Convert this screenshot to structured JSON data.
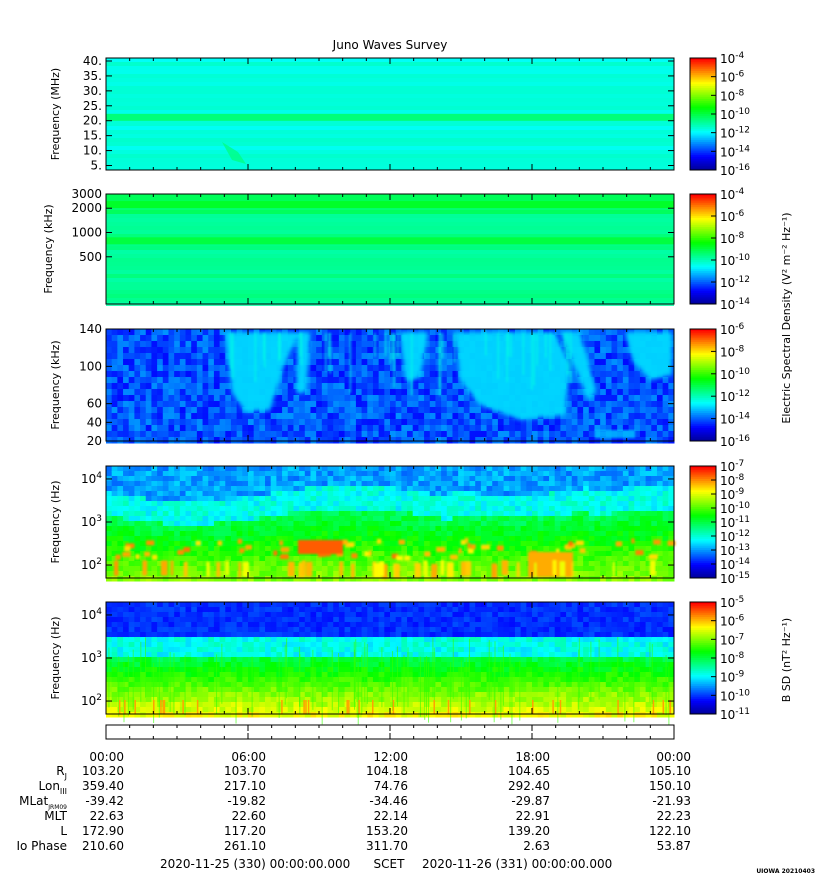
{
  "title": "Juno Waves Survey",
  "colors": {
    "colormap": [
      "#0000a0",
      "#0000ff",
      "#0080ff",
      "#00ffff",
      "#00ff80",
      "#00ff00",
      "#80ff00",
      "#ffff00",
      "#ff8000",
      "#ff0000"
    ]
  },
  "chart_data": [
    {
      "type": "heatmap",
      "ylabel": "Frequency (MHz)",
      "yscale": "linear",
      "ylim": [
        3.5,
        41
      ],
      "yticks": [
        {
          "v": 5,
          "label": "5."
        },
        {
          "v": 10,
          "label": "10."
        },
        {
          "v": 15,
          "label": "15."
        },
        {
          "v": 20,
          "label": "20."
        },
        {
          "v": 25,
          "label": "25."
        },
        {
          "v": 30,
          "label": "30."
        },
        {
          "v": 35,
          "label": "35."
        },
        {
          "v": 40,
          "label": "40."
        }
      ],
      "colorbar": {
        "exponents": [
          "-4",
          "-6",
          "-8",
          "-10",
          "-12",
          "-14",
          "-16"
        ],
        "range": [
          -4,
          -16
        ]
      },
      "bands": [
        {
          "y": 21.3,
          "level": 0.45
        }
      ]
    },
    {
      "type": "heatmap",
      "ylabel": "Frequency (kHz)",
      "yscale": "log",
      "ylim": [
        130,
        3000
      ],
      "yticks": [
        {
          "v": 500,
          "label": "500"
        },
        {
          "v": 1000,
          "label": "1000"
        },
        {
          "v": 2000,
          "label": "2000"
        },
        {
          "v": 3000,
          "label": "3000"
        }
      ],
      "colorbar": {
        "exponents": [
          "-4",
          "-6",
          "-8",
          "-10",
          "-12",
          "-14"
        ],
        "range": [
          -4,
          -14
        ]
      },
      "bands": [
        {
          "y": 2250,
          "level": 0.52
        },
        {
          "y": 800,
          "level": 0.5
        }
      ]
    },
    {
      "type": "heatmap",
      "ylabel": "Frequency (kHz)",
      "yscale": "linear",
      "ylim": [
        20,
        140
      ],
      "yticks": [
        {
          "v": 20,
          "label": "20"
        },
        {
          "v": 40,
          "label": "40"
        },
        {
          "v": 60,
          "label": "60"
        },
        {
          "v": 100,
          "label": "100"
        },
        {
          "v": 140,
          "label": "140"
        }
      ],
      "colorbar": {
        "exponents": [
          "-6",
          "-8",
          "-10",
          "-12",
          "-14",
          "-16"
        ],
        "range": [
          -6,
          -16
        ]
      },
      "side_label": "Electric Spectral Density (V² m⁻² Hz⁻¹)"
    },
    {
      "type": "heatmap",
      "ylabel": "Frequency (Hz)",
      "yscale": "log",
      "ylim": [
        50,
        20000
      ],
      "yticks": [
        {
          "v": 100,
          "label": "10",
          "exp": "2"
        },
        {
          "v": 1000,
          "label": "10",
          "exp": "3"
        },
        {
          "v": 10000,
          "label": "10",
          "exp": "4"
        }
      ],
      "colorbar": {
        "exponents": [
          "-7",
          "-8",
          "-9",
          "-10",
          "-11",
          "-12",
          "-13",
          "-14",
          "-15"
        ],
        "range": [
          -7,
          -15
        ]
      }
    },
    {
      "type": "heatmap",
      "ylabel": "Frequency (Hz)",
      "yscale": "log",
      "ylim": [
        50,
        20000
      ],
      "yticks": [
        {
          "v": 100,
          "label": "10",
          "exp": "2"
        },
        {
          "v": 1000,
          "label": "10",
          "exp": "3"
        },
        {
          "v": 10000,
          "label": "10",
          "exp": "4"
        }
      ],
      "colorbar": {
        "exponents": [
          "-5",
          "-6",
          "-7",
          "-8",
          "-9",
          "-10",
          "-11"
        ],
        "range": [
          -5,
          -11
        ]
      },
      "side_label": "B SD (nT² Hz⁻¹)"
    }
  ],
  "time_axis": {
    "ticks": [
      "00:00",
      "06:00",
      "12:00",
      "18:00",
      "00:00"
    ],
    "rows": [
      {
        "label": "R",
        "sub": "J",
        "values": [
          "103.20",
          "103.70",
          "104.18",
          "104.65",
          "105.10"
        ]
      },
      {
        "label": "Lon",
        "sub": "III",
        "values": [
          "359.40",
          "217.10",
          "74.76",
          "292.40",
          "150.10"
        ]
      },
      {
        "label": "MLat",
        "sub": "JRM09",
        "values": [
          "-39.42",
          "-19.82",
          "-34.46",
          "-29.87",
          "-21.93"
        ]
      },
      {
        "label": "MLT",
        "sub": "",
        "values": [
          "22.63",
          "22.60",
          "22.14",
          "22.91",
          "22.23"
        ]
      },
      {
        "label": "L",
        "sub": "",
        "values": [
          "172.90",
          "117.20",
          "153.20",
          "139.20",
          "122.10"
        ]
      },
      {
        "label": "Io Phase",
        "sub": "",
        "values": [
          "210.60",
          "261.10",
          "311.70",
          "2.63",
          "53.87"
        ]
      }
    ],
    "start": "2020-11-25 (330) 00:00:00.000",
    "middle": "SCET",
    "end": "2020-11-26 (331) 00:00:00.000"
  },
  "footer": "UIOWA 20210403"
}
